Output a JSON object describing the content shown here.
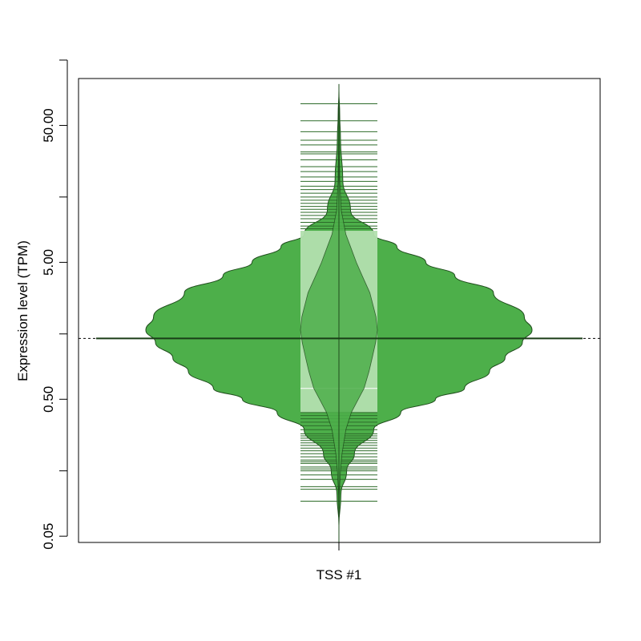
{
  "chart_data": {
    "type": "violin",
    "title": "",
    "xlabel": "",
    "ylabel": "Expression level (TPM)",
    "y_scale": "log",
    "ylim": [
      0.045,
      110
    ],
    "y_ticks_major": [
      {
        "value": 0.05,
        "label": "0.05"
      },
      {
        "value": 0.5,
        "label": "0.50"
      },
      {
        "value": 5,
        "label": "5.00"
      },
      {
        "value": 50,
        "label": "50.00"
      }
    ],
    "y_ticks_minor": [
      0.15,
      1.5,
      15,
      150
    ],
    "categories": [
      "TSS #1"
    ],
    "reference_line": 1.39,
    "colors": {
      "violin_fill": "#4daf4a",
      "violin_stroke": "#1f4d1c",
      "inner_fill": "#b2dfae",
      "rug_line": "#2e6b2a",
      "median_line": "#1a3d17",
      "reference_line": "#000000"
    },
    "series": [
      {
        "category": "TSS #1",
        "median": 1.39,
        "quartiles": [
          0.4,
          8.5
        ],
        "range": [
          0.06,
          90
        ],
        "density": [
          [
            0.06,
            0.0
          ],
          [
            0.1,
            0.01
          ],
          [
            0.15,
            0.04
          ],
          [
            0.2,
            0.08
          ],
          [
            0.3,
            0.18
          ],
          [
            0.4,
            0.32
          ],
          [
            0.5,
            0.5
          ],
          [
            0.6,
            0.65
          ],
          [
            0.8,
            0.78
          ],
          [
            1.0,
            0.86
          ],
          [
            1.3,
            0.95
          ],
          [
            1.6,
            1.0
          ],
          [
            2.0,
            0.96
          ],
          [
            3.0,
            0.8
          ],
          [
            4.0,
            0.6
          ],
          [
            5.0,
            0.45
          ],
          [
            6.5,
            0.3
          ],
          [
            8.0,
            0.18
          ],
          [
            12,
            0.06
          ],
          [
            20,
            0.02
          ],
          [
            40,
            0.008
          ],
          [
            60,
            0.004
          ],
          [
            90,
            0.0
          ]
        ],
        "rug_values": [
          0.09,
          0.11,
          0.115,
          0.13,
          0.14,
          0.15,
          0.155,
          0.16,
          0.17,
          0.175,
          0.18,
          0.19,
          0.2,
          0.21,
          0.22,
          0.23,
          0.24,
          0.25,
          0.26,
          0.27,
          0.28,
          0.3,
          0.32,
          0.34,
          0.36,
          0.38,
          0.4,
          0.6,
          8.8,
          9.2,
          9.8,
          10.4,
          11,
          11.6,
          12.2,
          12.8,
          13.5,
          14.2,
          15,
          16,
          17,
          18,
          19.5,
          21,
          23,
          25,
          28,
          31,
          32,
          36,
          39,
          45,
          54,
          72
        ]
      }
    ]
  }
}
